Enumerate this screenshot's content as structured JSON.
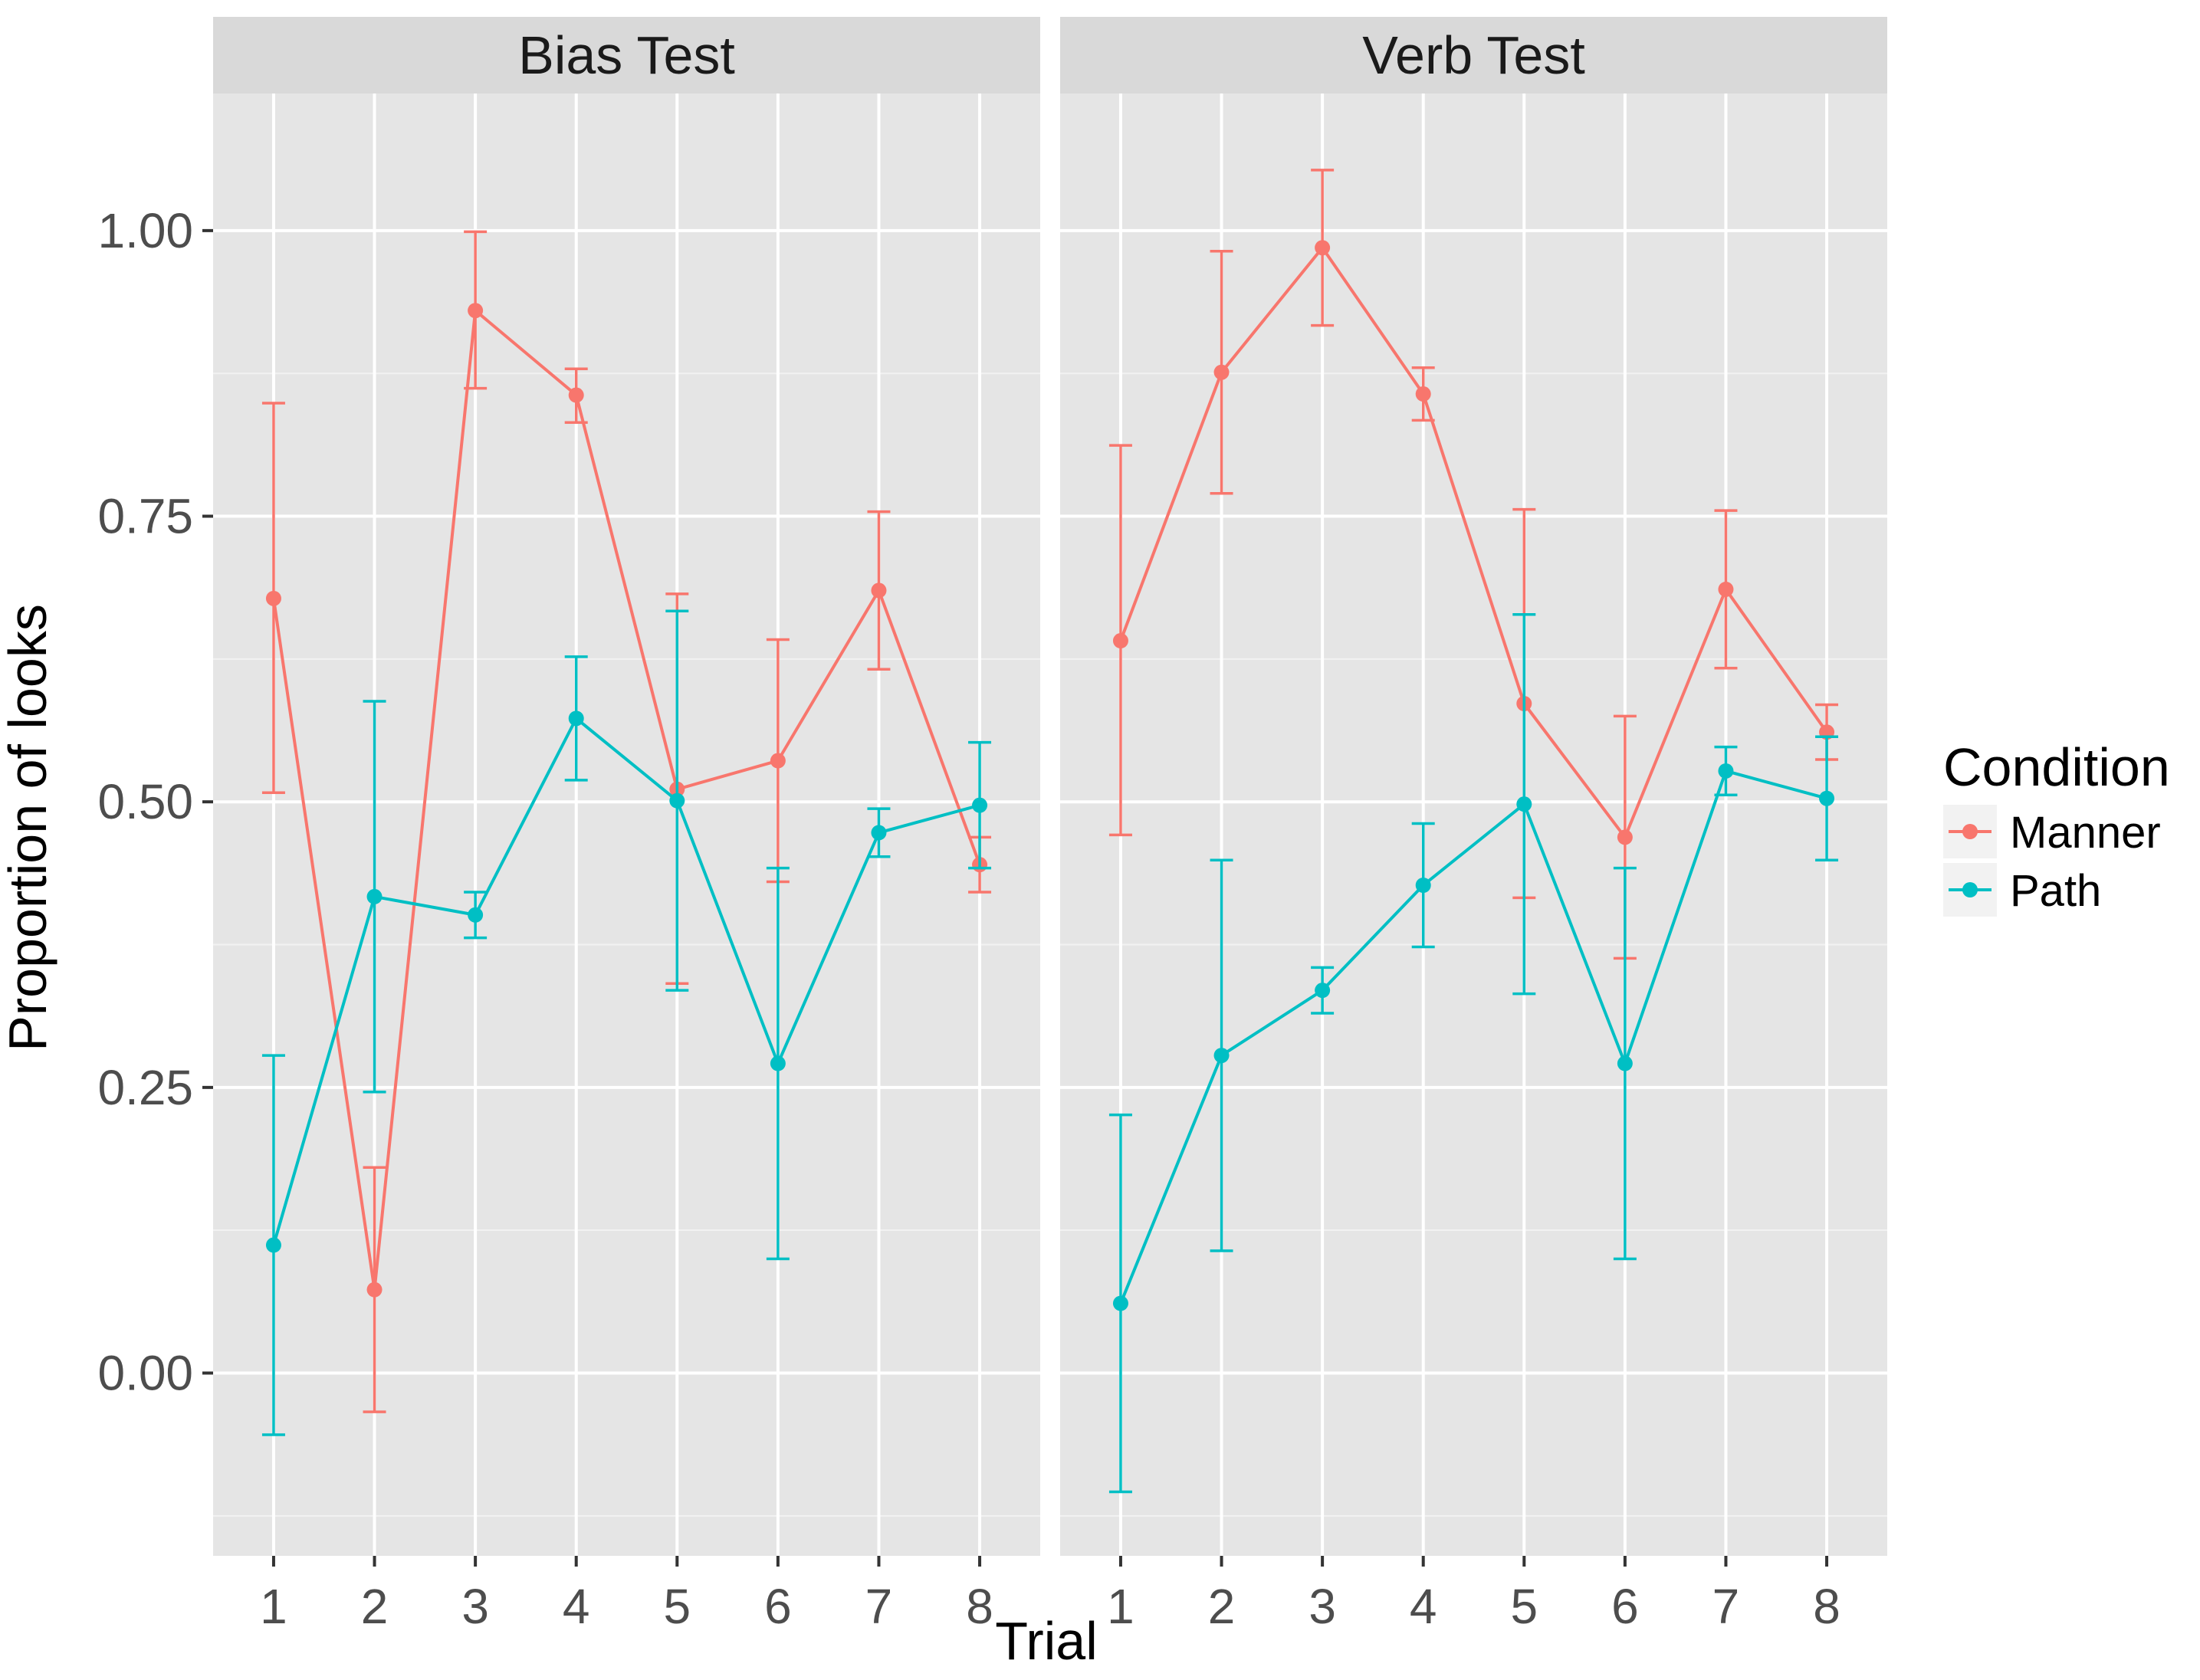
{
  "chart_data": {
    "type": "line",
    "xlabel": "Trial",
    "ylabel": "Proportion of looks",
    "x": [
      1,
      2,
      3,
      4,
      5,
      6,
      7,
      8
    ],
    "x_tick_labels": [
      "1",
      "2",
      "3",
      "4",
      "5",
      "6",
      "7",
      "8"
    ],
    "ylim": [
      -0.16,
      1.12
    ],
    "y_ticks": [
      0.0,
      0.25,
      0.5,
      0.75,
      1.0
    ],
    "y_tick_labels": [
      "0.00",
      "0.25",
      "0.50",
      "0.75",
      "1.00"
    ],
    "grid": true,
    "legend": {
      "title": "Condition",
      "placement": "right",
      "entries": [
        {
          "name": "Manner",
          "color": "#F8766D"
        },
        {
          "name": "Path",
          "color": "#00BFC4"
        }
      ]
    },
    "panels": [
      {
        "title": "Bias Test",
        "series": [
          {
            "name": "Manner",
            "color": "#F8766D",
            "values": [
              0.678,
              0.073,
              0.93,
              0.856,
              0.511,
              0.536,
              0.685,
              0.445
            ],
            "lower": [
              0.508,
              -0.034,
              0.862,
              0.832,
              0.341,
              0.43,
              0.616,
              0.421
            ],
            "upper": [
              0.849,
              0.18,
              0.999,
              0.879,
              0.682,
              0.642,
              0.754,
              0.469
            ]
          },
          {
            "name": "Path",
            "color": "#00BFC4",
            "values": [
              0.112,
              0.417,
              0.401,
              0.573,
              0.501,
              0.271,
              0.473,
              0.497
            ],
            "lower": [
              -0.054,
              0.246,
              0.381,
              0.519,
              0.335,
              0.1,
              0.452,
              0.442
            ],
            "upper": [
              0.278,
              0.588,
              0.421,
              0.627,
              0.667,
              0.442,
              0.494,
              0.552
            ]
          }
        ]
      },
      {
        "title": "Verb Test",
        "series": [
          {
            "name": "Manner",
            "color": "#F8766D",
            "values": [
              0.641,
              0.876,
              0.985,
              0.857,
              0.586,
              0.469,
              0.686,
              0.561
            ],
            "lower": [
              0.471,
              0.77,
              0.917,
              0.834,
              0.416,
              0.363,
              0.617,
              0.537
            ],
            "upper": [
              0.812,
              0.982,
              1.053,
              0.88,
              0.756,
              0.575,
              0.755,
              0.585
            ]
          },
          {
            "name": "Path",
            "color": "#00BFC4",
            "values": [
              0.061,
              0.278,
              0.335,
              0.427,
              0.498,
              0.271,
              0.527,
              0.503
            ],
            "lower": [
              -0.104,
              0.107,
              0.315,
              0.373,
              0.332,
              0.1,
              0.506,
              0.449
            ],
            "upper": [
              0.226,
              0.449,
              0.355,
              0.481,
              0.664,
              0.442,
              0.548,
              0.557
            ]
          }
        ]
      }
    ]
  }
}
